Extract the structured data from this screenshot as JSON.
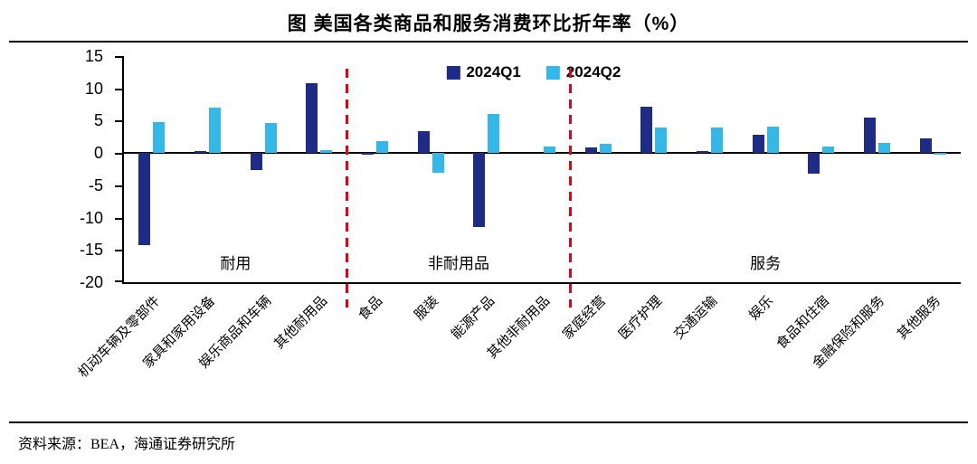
{
  "title": "图  美国各类商品和服务消费环比折年率（%）",
  "source_note": "资料来源：BEA，海通证券研究所",
  "chart_data": {
    "type": "bar",
    "title": "图 美国各类商品和服务消费环比折年率（%）",
    "xlabel": "",
    "ylabel": "",
    "ylim": [
      -20,
      15
    ],
    "yticks": [
      15,
      10,
      5,
      0,
      -5,
      -10,
      -15,
      -20
    ],
    "grid": false,
    "legend_position": "top-center",
    "categories": [
      "机动车辆及零部件",
      "家具和家用设备",
      "娱乐商品和车辆",
      "其他耐用品",
      "食品",
      "服装",
      "能源产品",
      "其他非耐用品",
      "家庭经营",
      "医疗护理",
      "交通运输",
      "娱乐",
      "食品和住宿",
      "金融保险和服务",
      "其他服务"
    ],
    "series": [
      {
        "name": "2024Q1",
        "color": "#1e2b87",
        "values": [
          -14.2,
          0.3,
          -2.6,
          10.8,
          -0.3,
          3.4,
          -11.5,
          0,
          0.9,
          7.2,
          0.3,
          2.8,
          -3.2,
          5.5,
          2.3
        ]
      },
      {
        "name": "2024Q2",
        "color": "#33b8e8",
        "values": [
          4.8,
          7.0,
          4.7,
          0.5,
          1.8,
          -3.1,
          6.0,
          1.0,
          1.4,
          4.0,
          3.9,
          4.1,
          1.0,
          1.5,
          -0.3
        ]
      }
    ],
    "groups": [
      {
        "label": "耐用",
        "start": 0,
        "end": 3
      },
      {
        "label": "非耐用品",
        "start": 4,
        "end": 7
      },
      {
        "label": "服务",
        "start": 8,
        "end": 14
      }
    ],
    "separators_after": [
      3,
      7
    ],
    "separator_color": "#e60012"
  }
}
